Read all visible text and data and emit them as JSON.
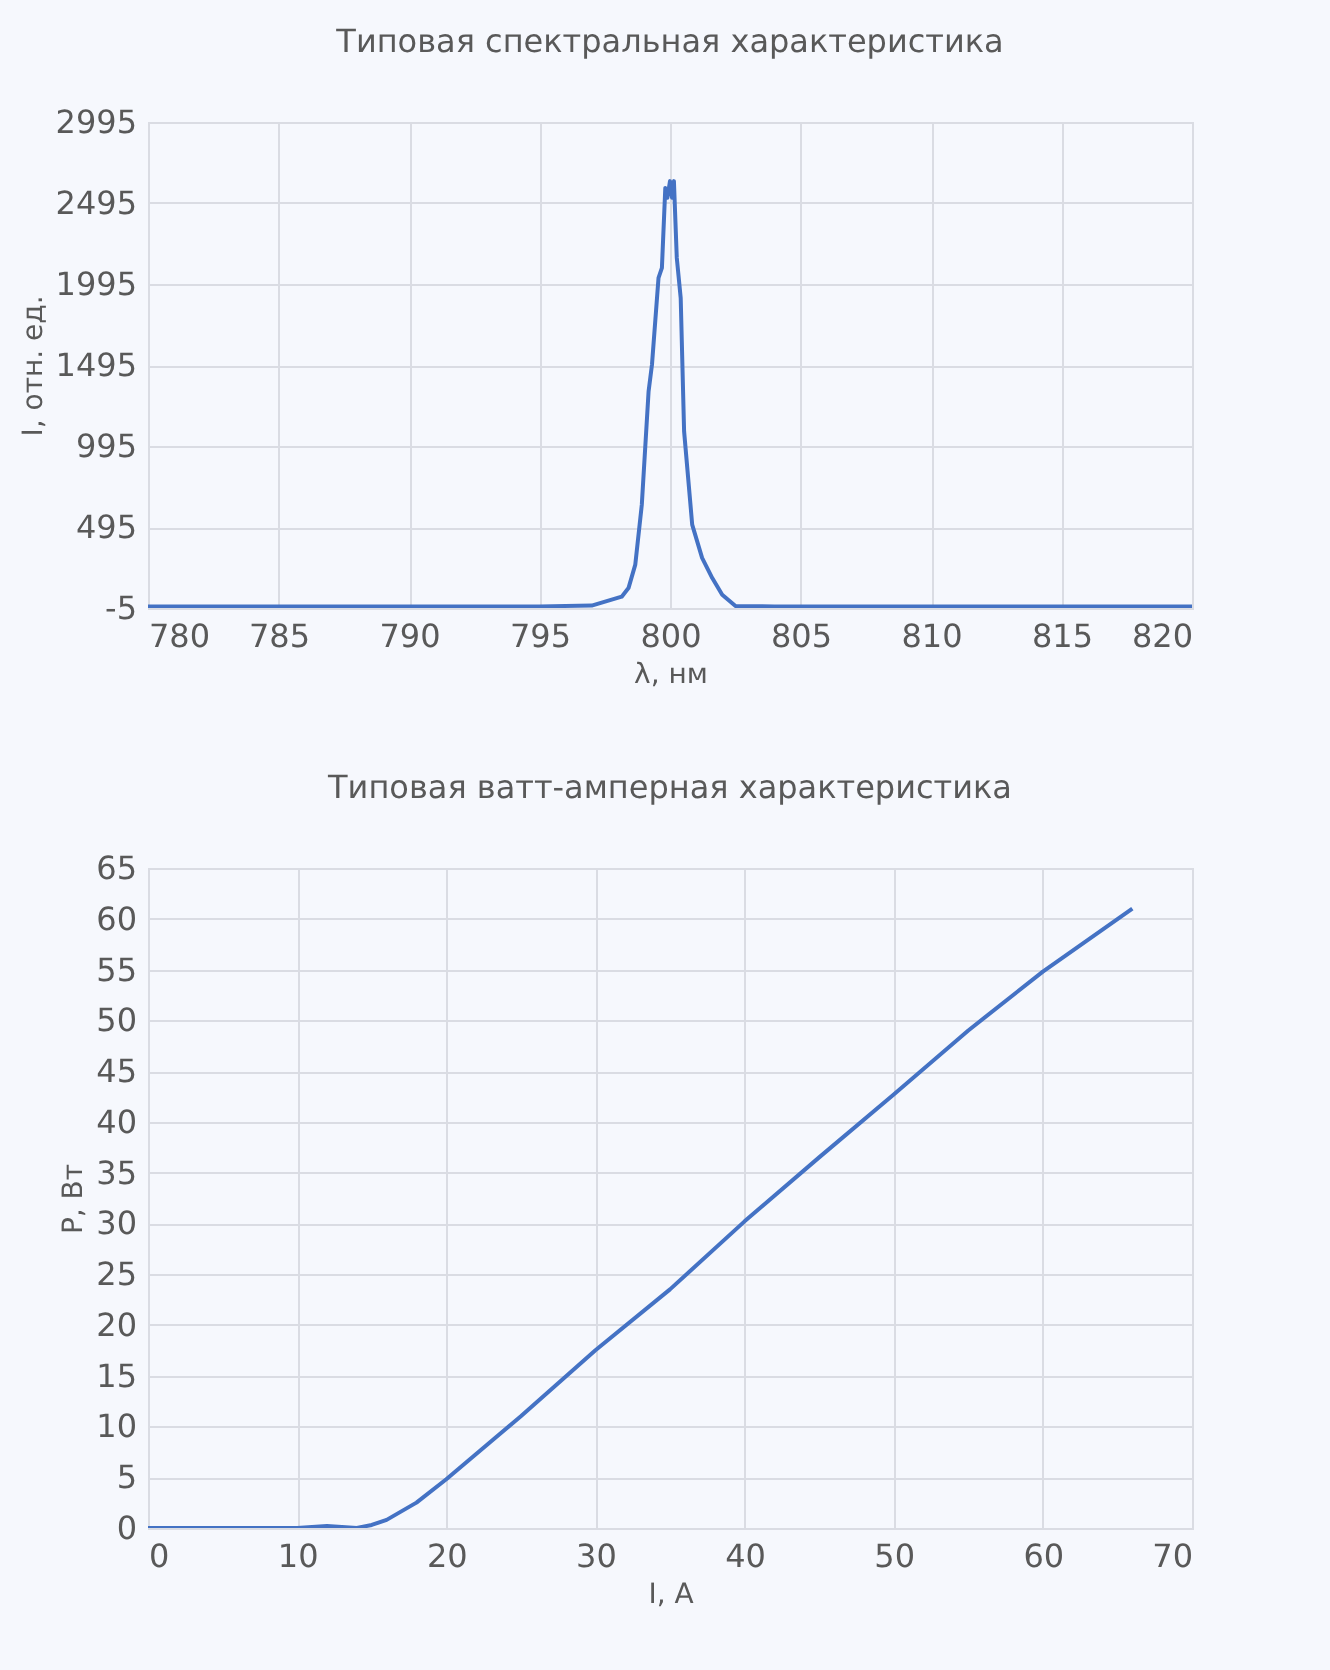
{
  "chart_data": [
    {
      "type": "line",
      "title": "Типовая спектральная характеристика",
      "xlabel": "λ, нм",
      "ylabel": "I, отн. ед.",
      "x": [
        780,
        785,
        790,
        795,
        797,
        798.15,
        798.41,
        798.67,
        798.92,
        799.18,
        799.31,
        799.56,
        799.69,
        799.82,
        799.9,
        800.0,
        800.08,
        800.15,
        800.26,
        800.41,
        800.54,
        800.85,
        801.23,
        801.62,
        802.0,
        802.51,
        804,
        810,
        815,
        820
      ],
      "series": [
        {
          "color": "#4472c4",
          "values": [
            5,
            5,
            5,
            5,
            10,
            65,
            118,
            263,
            633,
            1333,
            1498,
            2033,
            2095,
            2588,
            2527,
            2630,
            2527,
            2630,
            2156,
            1909,
            1086,
            510,
            304,
            180,
            77,
            7,
            5,
            5,
            5,
            5
          ]
        }
      ],
      "xlim": [
        780,
        820
      ],
      "xticks": [
        780,
        785,
        790,
        795,
        800,
        805,
        810,
        815,
        820
      ],
      "ylim": [
        -5,
        2995
      ],
      "yticks": [
        -5,
        495,
        995,
        1495,
        1995,
        2495,
        2995
      ],
      "grid": true,
      "line_style": "solid"
    },
    {
      "type": "line",
      "title": "Типовая ватт-амперная характеристика",
      "xlabel": "I, A",
      "ylabel": "P, Вт",
      "x": [
        0,
        10,
        12,
        14,
        15,
        16,
        18,
        20,
        25,
        30,
        35,
        40,
        45,
        50,
        55,
        60,
        66
      ],
      "series": [
        {
          "color": "#4472c4",
          "values": [
            0,
            0,
            0.2,
            0,
            0.3,
            0.8,
            2.5,
            4.8,
            11,
            17.5,
            23.5,
            30.2,
            36.5,
            42.7,
            49,
            54.8,
            61
          ]
        }
      ],
      "xlim": [
        0,
        70
      ],
      "xticks": [
        0,
        10,
        20,
        30,
        40,
        50,
        60,
        70
      ],
      "ylim": [
        0,
        65
      ],
      "yticks": [
        0,
        5,
        10,
        15,
        20,
        25,
        30,
        35,
        40,
        45,
        50,
        55,
        60,
        65
      ],
      "grid": true,
      "line_style": "solid"
    }
  ]
}
